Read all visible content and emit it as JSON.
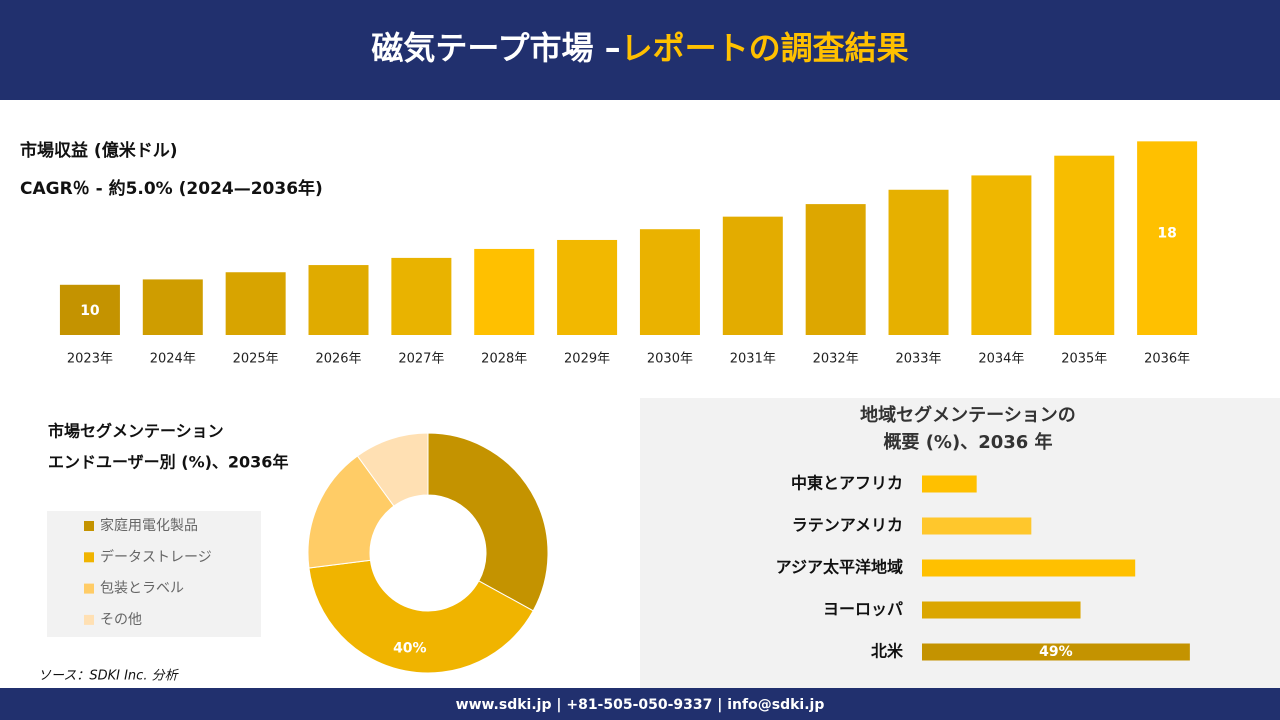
{
  "header": {
    "title": "磁気テープ市場 –",
    "title_highlight": "レポートの調査結果"
  },
  "chart_data": [
    {
      "type": "bar",
      "title": "市場収益 (億米ドル)",
      "subtitle": "CAGR％ - 約5.0% (2024—2036年)",
      "categories": [
        "2023年",
        "2024年",
        "2025年",
        "2026年",
        "2027年",
        "2028年",
        "2029年",
        "2030年",
        "2031年",
        "2032年",
        "2033年",
        "2034年",
        "2035年",
        "2036年"
      ],
      "values": [
        10,
        10.3,
        10.7,
        11.1,
        11.5,
        12,
        12.5,
        13.1,
        13.8,
        14.5,
        15.3,
        16.1,
        17.2,
        18
      ],
      "value_labels": [
        "10",
        null,
        null,
        null,
        null,
        null,
        null,
        null,
        null,
        null,
        null,
        null,
        null,
        "18"
      ],
      "colors": [
        "#c49300",
        "#cf9d00",
        "#d8a400",
        "#e0ab00",
        "#e9b300",
        "#ffc000",
        "#f2b800",
        "#eab200",
        "#e3ac00",
        "#dda700",
        "#e6b000",
        "#efb700",
        "#f7bd00",
        "#ffc000"
      ],
      "ylim": [
        7.2,
        18.8
      ]
    },
    {
      "type": "donut",
      "title": "市場セグメンテーション",
      "subtitle": "エンドユーザー別 (%)、2036年",
      "categories": [
        "家庭用電化製品",
        "データストレージ",
        "包装とラベル",
        "その他"
      ],
      "values": [
        33,
        40,
        17,
        10
      ],
      "value_labels": [
        null,
        "40%",
        null,
        null
      ],
      "colors": [
        "#c49300",
        "#f0b400",
        "#ffcc66",
        "#ffe0b3"
      ]
    },
    {
      "type": "hbar",
      "title": "地域セグメンテーションの",
      "subtitle": "概要 (%)、2036 年",
      "categories": [
        "中東とアフリカ",
        "ラテンアメリカ",
        "アジア太平洋地域",
        "ヨーロッパ",
        "北米"
      ],
      "values": [
        10,
        20,
        39,
        29,
        49
      ],
      "value_labels": [
        null,
        null,
        null,
        null,
        "49%"
      ],
      "colors": [
        "#ffc000",
        "#ffc72c",
        "#ffc000",
        "#dba600",
        "#c49300"
      ],
      "xlim": [
        0,
        60
      ]
    }
  ],
  "source": "ソース：SDKI Inc. 分析",
  "footer": "www.sdki.jp | +81-505-050-9337 | info@sdki.jp"
}
